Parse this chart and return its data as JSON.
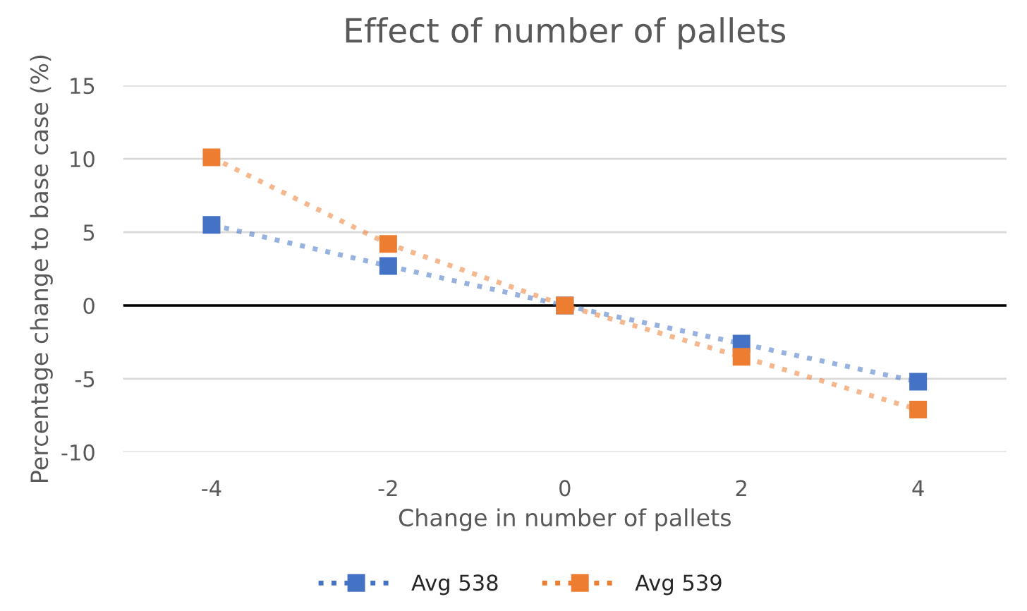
{
  "chart_data": {
    "type": "line",
    "title": "Effect of number of pallets",
    "xlabel": "Change in number of pallets",
    "ylabel": "Percentage change to base case (%)",
    "categories": [
      "-4",
      "-2",
      "0",
      "2",
      "4"
    ],
    "series": [
      {
        "name": "Avg 538",
        "color": "#4472c4",
        "values": [
          5.5,
          2.7,
          0,
          -2.6,
          -5.2
        ]
      },
      {
        "name": "Avg 539",
        "color": "#ed7d31",
        "values": [
          10.1,
          4.2,
          0,
          -3.5,
          -7.1
        ]
      }
    ],
    "ylim": [
      -10,
      15
    ],
    "yticks": [
      -10,
      -5,
      0,
      5,
      10,
      15
    ],
    "grid": "y",
    "legend": "bottom",
    "marker": "square",
    "line_style": "dotted",
    "ref_lines": [
      {
        "axis": "y",
        "value": 0,
        "color": "#000000"
      }
    ]
  }
}
